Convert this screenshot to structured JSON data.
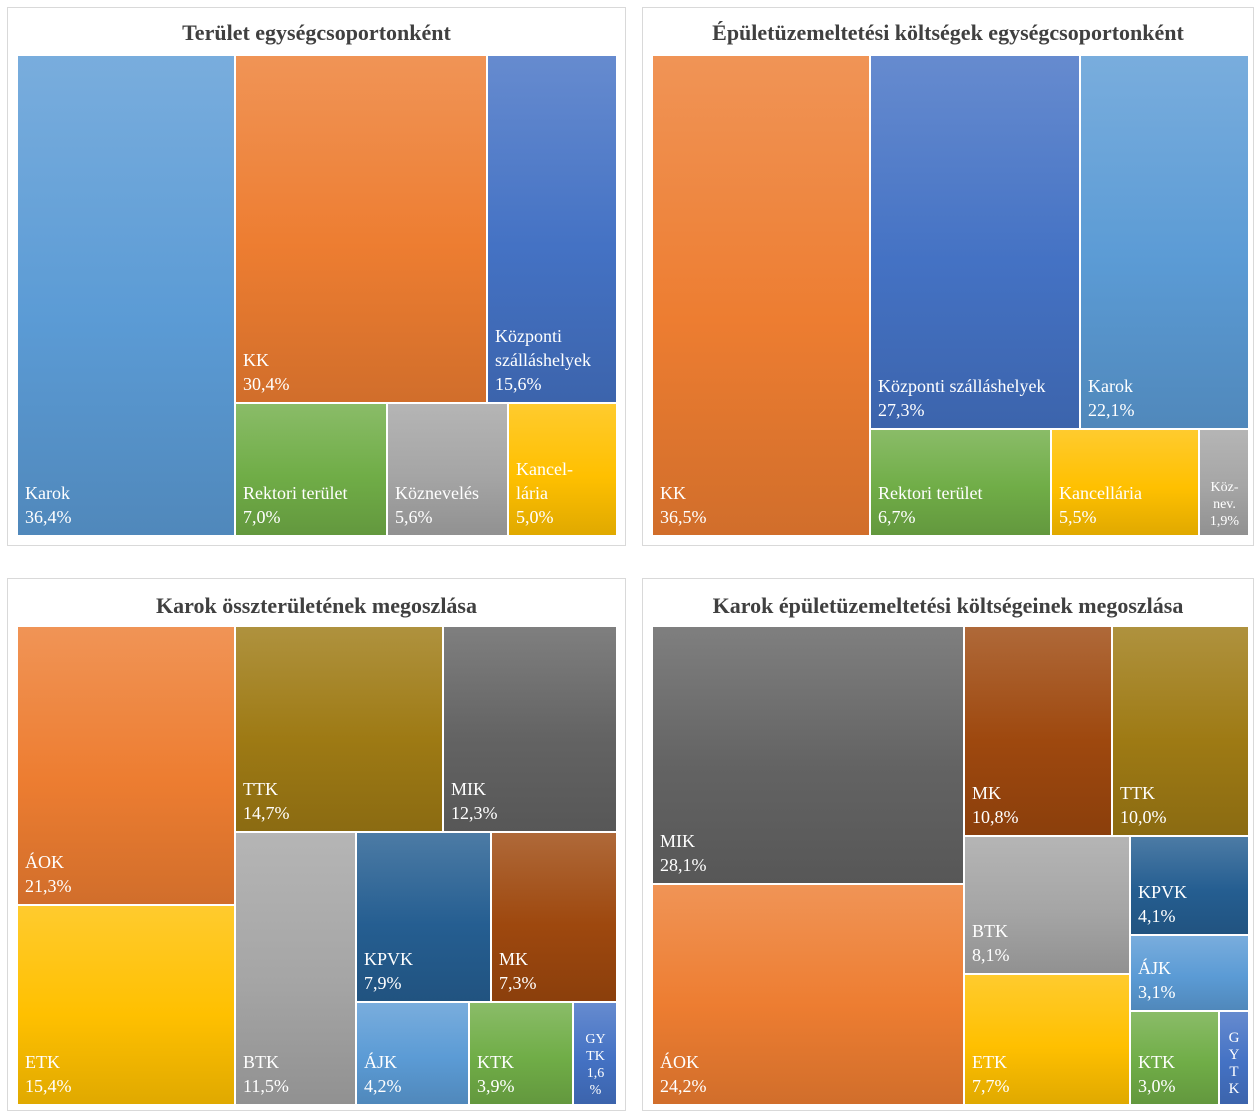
{
  "chart_data": [
    {
      "type": "treemap",
      "title": "Terület egységcsoportonként",
      "items": [
        {
          "name": "Karok",
          "value": 36.4,
          "label": "36,4%",
          "color": "#5b9bd5"
        },
        {
          "name": "KK",
          "value": 30.4,
          "label": "30,4%",
          "color": "#ed7d31"
        },
        {
          "name": "Központi szálláshelyek",
          "label_lines": [
            "Központi",
            "szálláshelyek"
          ],
          "value": 15.6,
          "label": "15,6%",
          "color": "#4472c4"
        },
        {
          "name": "Rektori terület",
          "value": 7.0,
          "label": "7,0%",
          "color": "#70ad47"
        },
        {
          "name": "Köznevelés",
          "value": 5.6,
          "label": "5,6%",
          "color": "#a5a5a5"
        },
        {
          "name": "Kancelláría",
          "label_lines": [
            "Kancel-",
            "lária"
          ],
          "value": 5.0,
          "label": "5,0%",
          "color": "#ffc000"
        }
      ]
    },
    {
      "type": "treemap",
      "title": "Épületüzemeltetési költségek egységcsoportonként",
      "items": [
        {
          "name": "KK",
          "value": 36.5,
          "label": "36,5%",
          "color": "#ed7d31"
        },
        {
          "name": "Központi szálláshelyek",
          "value": 27.3,
          "label": "27,3%",
          "color": "#4472c4"
        },
        {
          "name": "Karok",
          "value": 22.1,
          "label": "22,1%",
          "color": "#5b9bd5"
        },
        {
          "name": "Rektori terület",
          "value": 6.7,
          "label": "6,7%",
          "color": "#70ad47"
        },
        {
          "name": "Kancellária",
          "value": 5.5,
          "label": "5,5%",
          "color": "#ffc000"
        },
        {
          "name": "Köznevelés",
          "label_lines": [
            "Köz-",
            "nev."
          ],
          "value": 1.9,
          "label": "1,9%",
          "color": "#a5a5a5"
        }
      ]
    },
    {
      "type": "treemap",
      "title": "Karok összterületének megoszlása",
      "items": [
        {
          "name": "ÁOK",
          "value": 21.3,
          "label": "21,3%",
          "color": "#ed7d31"
        },
        {
          "name": "ETK",
          "value": 15.4,
          "label": "15,4%",
          "color": "#ffc000"
        },
        {
          "name": "TTK",
          "value": 14.7,
          "label": "14,7%",
          "color": "#9e7a14"
        },
        {
          "name": "MIK",
          "value": 12.3,
          "label": "12,3%",
          "color": "#636363"
        },
        {
          "name": "BTK",
          "value": 11.5,
          "label": "11,5%",
          "color": "#a5a5a5"
        },
        {
          "name": "KPVK",
          "value": 7.9,
          "label": "7,9%",
          "color": "#255e91"
        },
        {
          "name": "MK",
          "value": 7.3,
          "label": "7,3%",
          "color": "#9e480e"
        },
        {
          "name": "ÁJK",
          "value": 4.2,
          "label": "4,2%",
          "color": "#5b9bd5"
        },
        {
          "name": "KTK",
          "value": 3.9,
          "label": "3,9%",
          "color": "#70ad47"
        },
        {
          "name": "GYTK",
          "label_lines": [
            "GY",
            "TK",
            "1,6",
            "%"
          ],
          "value": 1.6,
          "label": "1,6%",
          "color": "#4472c4"
        }
      ]
    },
    {
      "type": "treemap",
      "title": "Karok épületüzemeltetési költségeinek megoszlása",
      "items": [
        {
          "name": "MIK",
          "value": 28.1,
          "label": "28,1%",
          "color": "#636363"
        },
        {
          "name": "ÁOK",
          "value": 24.2,
          "label": "24,2%",
          "color": "#ed7d31"
        },
        {
          "name": "MK",
          "value": 10.8,
          "label": "10,8%",
          "color": "#9e480e"
        },
        {
          "name": "TTK",
          "value": 10.0,
          "label": "10,0%",
          "color": "#9e7a14"
        },
        {
          "name": "BTK",
          "value": 8.1,
          "label": "8,1%",
          "color": "#a5a5a5"
        },
        {
          "name": "ETK",
          "value": 7.7,
          "label": "7,7%",
          "color": "#ffc000"
        },
        {
          "name": "KPVK",
          "value": 4.1,
          "label": "4,1%",
          "color": "#255e91"
        },
        {
          "name": "ÁJK",
          "value": 3.1,
          "label": "3,1%",
          "color": "#5b9bd5"
        },
        {
          "name": "KTK",
          "value": 3.0,
          "label": "3,0%",
          "color": "#70ad47"
        },
        {
          "name": "GYTK",
          "label_lines": [
            "G",
            "Y",
            "T",
            "K"
          ],
          "value": 0.0,
          "label": "",
          "color": "#4472c4"
        }
      ]
    }
  ]
}
